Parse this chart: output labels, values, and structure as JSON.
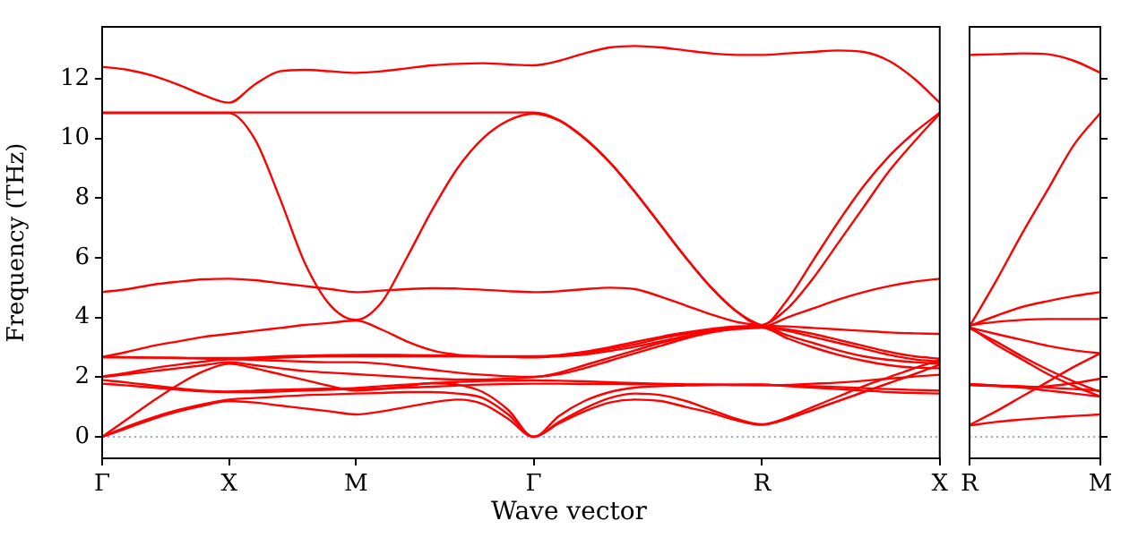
{
  "chart_data": [
    {
      "type": "line",
      "ylabel": "Frequency (THz)",
      "xlabel": "Wave vector",
      "categories": [
        "Γ",
        null,
        null,
        null,
        null,
        "X",
        null,
        null,
        null,
        null,
        "M",
        null,
        null,
        null,
        null,
        null,
        null,
        "Γ",
        null,
        null,
        null,
        null,
        null,
        null,
        null,
        null,
        "R",
        null,
        null,
        null,
        null,
        null,
        null,
        "X"
      ],
      "ylim": [
        -0.72,
        13.74
      ],
      "yticks": [
        0,
        2,
        4,
        6,
        8,
        10,
        12
      ],
      "ref_lines": [
        {
          "axis": "y",
          "value": 0,
          "color": "#7f7fff",
          "line_style": "dotted"
        }
      ],
      "legend": false,
      "series": [
        {
          "color": "#ff0000",
          "values": [
            0,
            0.3,
            0.6,
            0.85,
            1.05,
            1.2,
            1.15,
            1.05,
            0.95,
            0.85,
            0.75,
            0.85,
            1.0,
            1.15,
            1.25,
            1.1,
            0.6,
            0,
            0.45,
            0.85,
            1.15,
            1.25,
            1.2,
            1.0,
            0.8,
            0.55,
            0.4,
            0.6,
            0.9,
            1.2,
            1.5,
            1.8,
            2.1,
            2.42
          ]
        },
        {
          "color": "#ff0000",
          "values": [
            0,
            0.35,
            0.65,
            0.9,
            1.1,
            1.25,
            1.3,
            1.35,
            1.4,
            1.42,
            1.45,
            1.47,
            1.5,
            1.5,
            1.45,
            1.3,
            0.75,
            0,
            0.5,
            0.95,
            1.3,
            1.45,
            1.4,
            1.2,
            0.9,
            0.6,
            0.42,
            0.65,
            1.0,
            1.35,
            1.7,
            2.0,
            2.3,
            2.58
          ]
        },
        {
          "color": "#ff0000",
          "values": [
            0,
            0.6,
            1.2,
            1.75,
            2.2,
            2.45,
            2.3,
            2.1,
            1.9,
            1.7,
            1.55,
            1.6,
            1.7,
            1.8,
            1.75,
            1.5,
            0.9,
            0,
            0.7,
            1.2,
            1.5,
            1.65,
            1.7,
            1.72,
            1.74,
            1.75,
            1.76,
            1.7,
            1.65,
            1.6,
            1.55,
            1.5,
            1.47,
            1.45
          ]
        },
        {
          "color": "#ff0000",
          "values": [
            1.78,
            1.72,
            1.65,
            1.58,
            1.52,
            1.5,
            1.5,
            1.52,
            1.55,
            1.58,
            1.6,
            1.62,
            1.65,
            1.68,
            1.72,
            1.75,
            1.77,
            1.78,
            1.78,
            1.77,
            1.77,
            1.76,
            1.76,
            1.75,
            1.75,
            1.74,
            1.74,
            1.72,
            1.7,
            1.67,
            1.63,
            1.6,
            1.57,
            1.55
          ]
        },
        {
          "color": "#ff0000",
          "values": [
            1.9,
            1.82,
            1.72,
            1.62,
            1.55,
            1.52,
            1.55,
            1.58,
            1.6,
            1.62,
            1.64,
            1.7,
            1.75,
            1.8,
            1.84,
            1.87,
            1.88,
            1.89,
            1.88,
            1.86,
            1.83,
            1.8,
            1.78,
            1.76,
            1.75,
            1.74,
            1.73,
            1.74,
            1.78,
            1.82,
            1.88,
            1.95,
            2.02,
            2.08
          ]
        },
        {
          "color": "#ff0000",
          "values": [
            2.0,
            2.1,
            2.2,
            2.3,
            2.4,
            2.5,
            2.4,
            2.3,
            2.2,
            2.15,
            2.1,
            2.05,
            2.0,
            1.95,
            1.92,
            1.92,
            1.95,
            2.0,
            2.1,
            2.3,
            2.55,
            2.8,
            3.05,
            3.3,
            3.5,
            3.62,
            3.66,
            3.3,
            3.0,
            2.75,
            2.55,
            2.4,
            2.32,
            2.3
          ]
        },
        {
          "color": "#ff0000",
          "values": [
            2.02,
            2.15,
            2.3,
            2.42,
            2.52,
            2.6,
            2.58,
            2.55,
            2.52,
            2.5,
            2.5,
            2.45,
            2.35,
            2.25,
            2.15,
            2.08,
            2.03,
            2.01,
            2.15,
            2.4,
            2.65,
            2.9,
            3.15,
            3.35,
            3.52,
            3.62,
            3.67,
            4.0,
            4.3,
            4.6,
            4.85,
            5.05,
            5.2,
            5.3
          ]
        },
        {
          "color": "#ff0000",
          "values": [
            2.68,
            2.67,
            2.66,
            2.64,
            2.62,
            2.6,
            2.62,
            2.65,
            2.68,
            2.7,
            2.7,
            2.7,
            2.7,
            2.7,
            2.7,
            2.69,
            2.68,
            2.68,
            2.72,
            2.8,
            2.95,
            3.1,
            3.3,
            3.45,
            3.58,
            3.66,
            3.7,
            3.4,
            3.15,
            2.9,
            2.7,
            2.58,
            2.5,
            2.45
          ]
        },
        {
          "color": "#ff0000",
          "values": [
            2.66,
            2.66,
            2.65,
            2.65,
            2.64,
            2.64,
            2.66,
            2.7,
            2.72,
            2.74,
            2.75,
            2.75,
            2.74,
            2.73,
            2.72,
            2.7,
            2.68,
            2.66,
            2.7,
            2.76,
            2.88,
            3.02,
            3.2,
            3.38,
            3.55,
            3.65,
            3.72,
            3.7,
            3.65,
            3.6,
            3.55,
            3.5,
            3.47,
            3.45
          ]
        },
        {
          "color": "#ff0000",
          "values": [
            2.68,
            2.85,
            3.05,
            3.2,
            3.35,
            3.45,
            3.55,
            3.65,
            3.75,
            3.82,
            3.9,
            3.6,
            3.2,
            2.9,
            2.75,
            2.7,
            2.7,
            2.7,
            2.74,
            2.85,
            3.0,
            3.18,
            3.35,
            3.5,
            3.62,
            3.7,
            3.75,
            4.3,
            5.3,
            6.5,
            7.7,
            8.9,
            9.9,
            10.83
          ]
        },
        {
          "color": "#ff0000",
          "values": [
            4.85,
            4.95,
            5.1,
            5.2,
            5.28,
            5.3,
            5.25,
            5.15,
            5.05,
            4.95,
            4.85,
            4.9,
            4.95,
            4.98,
            4.97,
            4.93,
            4.88,
            4.85,
            4.88,
            4.95,
            5.0,
            4.95,
            4.7,
            4.4,
            4.1,
            3.85,
            3.72,
            3.55,
            3.35,
            3.15,
            2.95,
            2.75,
            2.6,
            2.52
          ]
        },
        {
          "color": "#ff0000",
          "values": [
            10.85,
            10.85,
            10.85,
            10.85,
            10.85,
            10.85,
            10.0,
            8.0,
            5.8,
            4.4,
            3.92,
            4.5,
            6.0,
            7.6,
            9.0,
            10.0,
            10.6,
            10.83,
            10.6,
            10.0,
            9.2,
            8.2,
            7.1,
            6.0,
            5.0,
            4.2,
            3.73,
            3.6,
            3.45,
            3.25,
            3.05,
            2.85,
            2.7,
            2.62
          ]
        },
        {
          "color": "#ff0000",
          "values": [
            10.87,
            10.87,
            10.87,
            10.87,
            10.87,
            10.87,
            10.87,
            10.87,
            10.87,
            10.87,
            10.87,
            10.87,
            10.87,
            10.87,
            10.87,
            10.87,
            10.87,
            10.87,
            10.62,
            10.02,
            9.2,
            8.2,
            7.1,
            6.0,
            5.0,
            4.2,
            3.74,
            4.6,
            5.9,
            7.2,
            8.4,
            9.4,
            10.2,
            10.86
          ]
        },
        {
          "color": "#ff0000",
          "values": [
            12.4,
            12.3,
            12.1,
            11.8,
            11.45,
            11.2,
            11.8,
            12.25,
            12.3,
            12.25,
            12.2,
            12.25,
            12.35,
            12.45,
            12.5,
            12.52,
            12.48,
            12.45,
            12.6,
            12.85,
            13.05,
            13.1,
            13.05,
            12.95,
            12.85,
            12.8,
            12.8,
            12.85,
            12.9,
            12.95,
            12.9,
            12.6,
            12.0,
            11.2
          ]
        }
      ]
    },
    {
      "type": "line",
      "tick_labels": "x",
      "categories": [
        "R",
        null,
        null,
        null,
        null,
        "M"
      ],
      "ylim": [
        -0.72,
        13.74
      ],
      "yticks": [
        0,
        2,
        4,
        6,
        8,
        10,
        12
      ],
      "ref_lines": [
        {
          "axis": "y",
          "value": 0,
          "color": "#7f7fff",
          "line_style": "dotted"
        }
      ],
      "legend": false,
      "series": [
        {
          "color": "#ff0000",
          "values": [
            12.8,
            12.82,
            12.85,
            12.82,
            12.6,
            12.2
          ]
        },
        {
          "color": "#ff0000",
          "values": [
            3.7,
            5.2,
            6.8,
            8.3,
            9.8,
            10.85
          ]
        },
        {
          "color": "#ff0000",
          "values": [
            3.72,
            4.05,
            4.35,
            4.55,
            4.72,
            4.85
          ]
        },
        {
          "color": "#ff0000",
          "values": [
            3.74,
            3.85,
            3.92,
            3.95,
            3.95,
            3.95
          ]
        },
        {
          "color": "#ff0000",
          "values": [
            3.66,
            3.45,
            3.25,
            3.05,
            2.9,
            2.8
          ]
        },
        {
          "color": "#ff0000",
          "values": [
            3.64,
            3.2,
            2.7,
            2.25,
            1.85,
            1.5
          ]
        },
        {
          "color": "#ff0000",
          "values": [
            3.68,
            3.1,
            2.6,
            2.1,
            1.7,
            1.35
          ]
        },
        {
          "color": "#ff0000",
          "values": [
            0.4,
            0.85,
            1.35,
            1.85,
            2.35,
            2.8
          ]
        },
        {
          "color": "#ff0000",
          "values": [
            1.75,
            1.72,
            1.7,
            1.65,
            1.6,
            1.55
          ]
        },
        {
          "color": "#ff0000",
          "values": [
            1.73,
            1.7,
            1.66,
            1.7,
            1.8,
            1.95
          ]
        },
        {
          "color": "#ff0000",
          "values": [
            1.77,
            1.72,
            1.65,
            1.55,
            1.45,
            1.35
          ]
        },
        {
          "color": "#ff0000",
          "values": [
            0.38,
            0.5,
            0.58,
            0.65,
            0.7,
            0.75
          ]
        }
      ]
    }
  ]
}
